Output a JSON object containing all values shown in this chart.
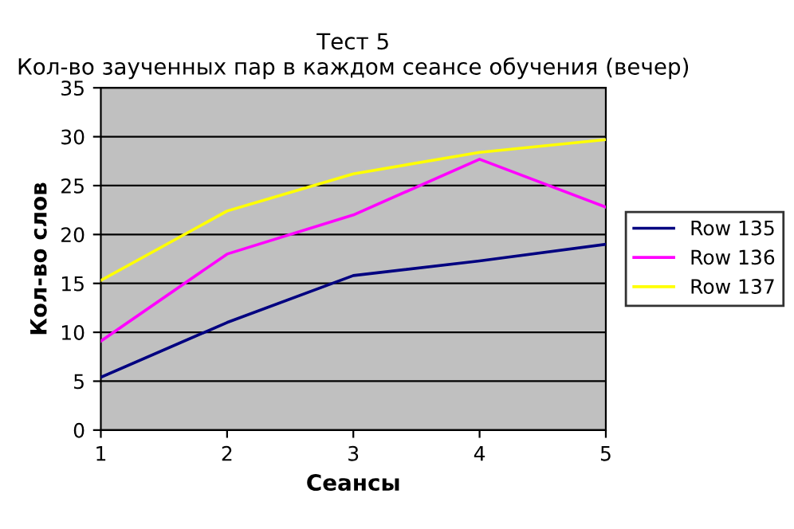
{
  "chart_data": {
    "type": "line",
    "title": "Тест 5\nКол-во заученных пар в каждом сеансе обучения (вечер)",
    "xlabel": "Сеансы",
    "ylabel": "Кол-во слов",
    "x": [
      1,
      2,
      3,
      4,
      5
    ],
    "xlim": [
      1,
      5
    ],
    "xticks": [
      1,
      2,
      3,
      4,
      5
    ],
    "ylim": [
      0,
      35
    ],
    "yticks": [
      0,
      5,
      10,
      15,
      20,
      25,
      30,
      35
    ],
    "grid": "y",
    "legend": "right",
    "marker": "none",
    "line_style": "solid",
    "series": [
      {
        "name": "Row 135",
        "color": "#000080",
        "values": [
          5.4,
          11,
          15.8,
          17.3,
          19
        ]
      },
      {
        "name": "Row 136",
        "color": "#ff00ff",
        "values": [
          9.1,
          18,
          22,
          27.7,
          22.8
        ]
      },
      {
        "name": "Row 137",
        "color": "#ffff00",
        "values": [
          15.3,
          22.4,
          26.2,
          28.4,
          29.7
        ]
      }
    ]
  }
}
